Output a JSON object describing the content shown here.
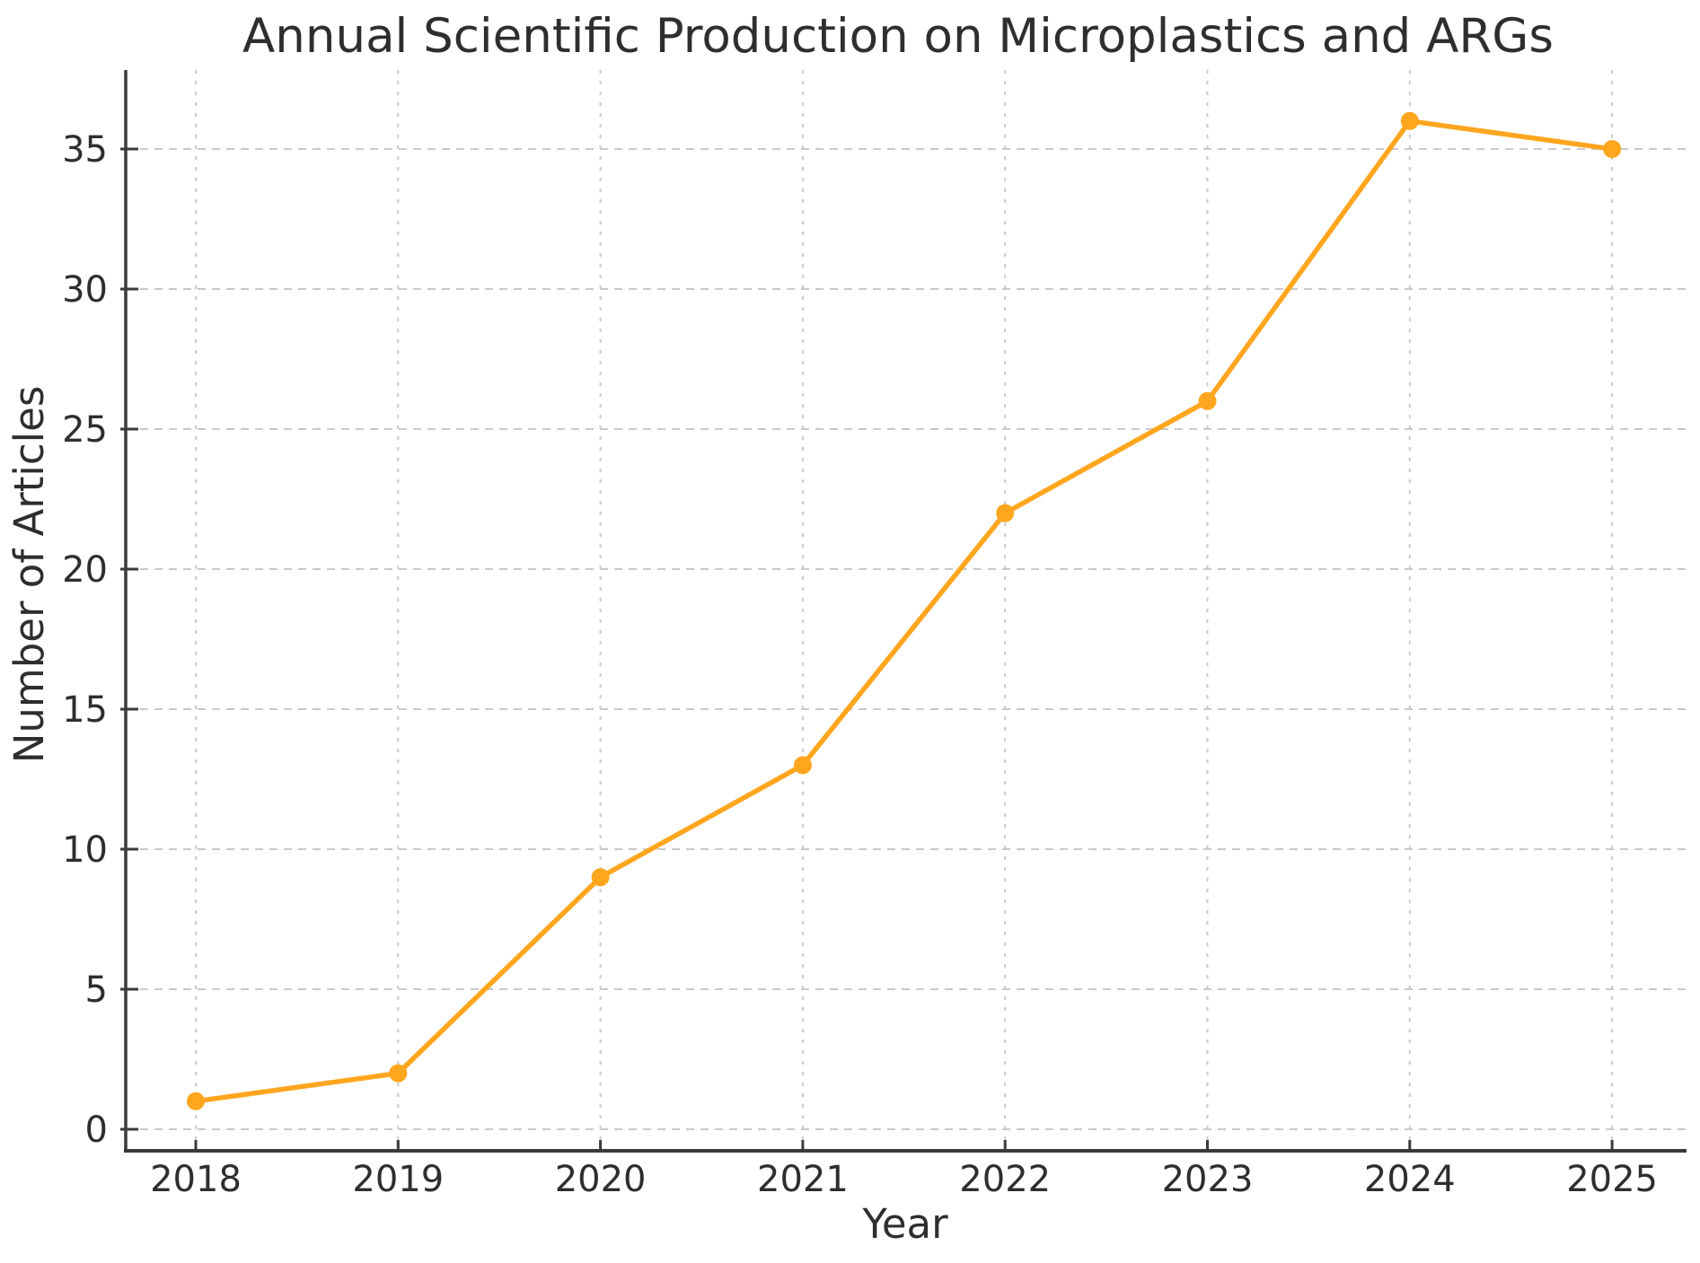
{
  "chart_data": {
    "type": "line",
    "title": "Annual Scientific Production on Microplastics and ARGs",
    "xlabel": "Year",
    "ylabel": "Number of Articles",
    "categories": [
      "2018",
      "2019",
      "2020",
      "2021",
      "2022",
      "2023",
      "2024",
      "2025"
    ],
    "series": [
      {
        "name": "Number of Articles",
        "values": [
          1,
          2,
          9,
          13,
          22,
          26,
          36,
          35
        ]
      }
    ],
    "yticks": [
      0,
      5,
      10,
      15,
      20,
      25,
      30,
      35
    ],
    "ylim": [
      -0.8,
      37.8
    ],
    "grid": true,
    "grid_style": "dashed",
    "legend": "none",
    "marker": "circle",
    "colors": {
      "line": "#FFA61E",
      "marker": "#FFA61E",
      "grid": "#C9C9C9",
      "axis": "#3A3A3A",
      "text": "#2E2E2E",
      "background": "#FFFFFF"
    }
  }
}
